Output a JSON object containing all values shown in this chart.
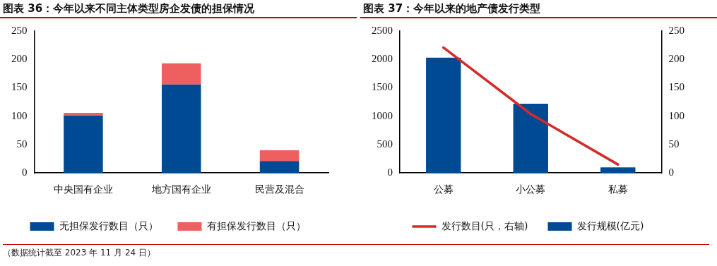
{
  "chart_data": [
    {
      "type": "bar",
      "title": "图表 36：今年以来不同主体类型房企发债的担保情况",
      "categories": [
        "中央国有企业",
        "地方国有企业",
        "民营及混合"
      ],
      "stacked": true,
      "series": [
        {
          "name": "无担保发行数目（只）",
          "color": "#004a93",
          "values": [
            101,
            156,
            21
          ]
        },
        {
          "name": "有担保发行数目（只）",
          "color": "#ee5f5f",
          "values": [
            5,
            37,
            19
          ]
        }
      ],
      "ylim": [
        0,
        250
      ],
      "yticks": [
        0,
        50,
        100,
        150,
        200,
        250
      ],
      "legend": "bottom",
      "annotations": [
        "（数据统计截至 2023 年 11 月 24 日）"
      ]
    },
    {
      "type": "bar",
      "title": "图表 37：今年以来的地产债发行类型",
      "categories": [
        "公募",
        "小公募",
        "私募"
      ],
      "series": [
        {
          "name": "发行规模(亿元)",
          "color": "#004a93",
          "values": [
            2030,
            1220,
            100
          ]
        },
        {
          "name": "发行数目(只，右轴)",
          "type": "line",
          "axis": "y2",
          "marker": "none",
          "color": "#d42a2a",
          "values": [
            221,
            104,
            15
          ]
        }
      ],
      "ylim": [
        0,
        2500
      ],
      "yticks": [
        0,
        500,
        1000,
        1500,
        2000,
        2500
      ],
      "y2lim": [
        0,
        250
      ],
      "y2ticks": [
        0,
        50,
        100,
        150,
        200,
        250
      ],
      "legend": "bottom"
    }
  ]
}
